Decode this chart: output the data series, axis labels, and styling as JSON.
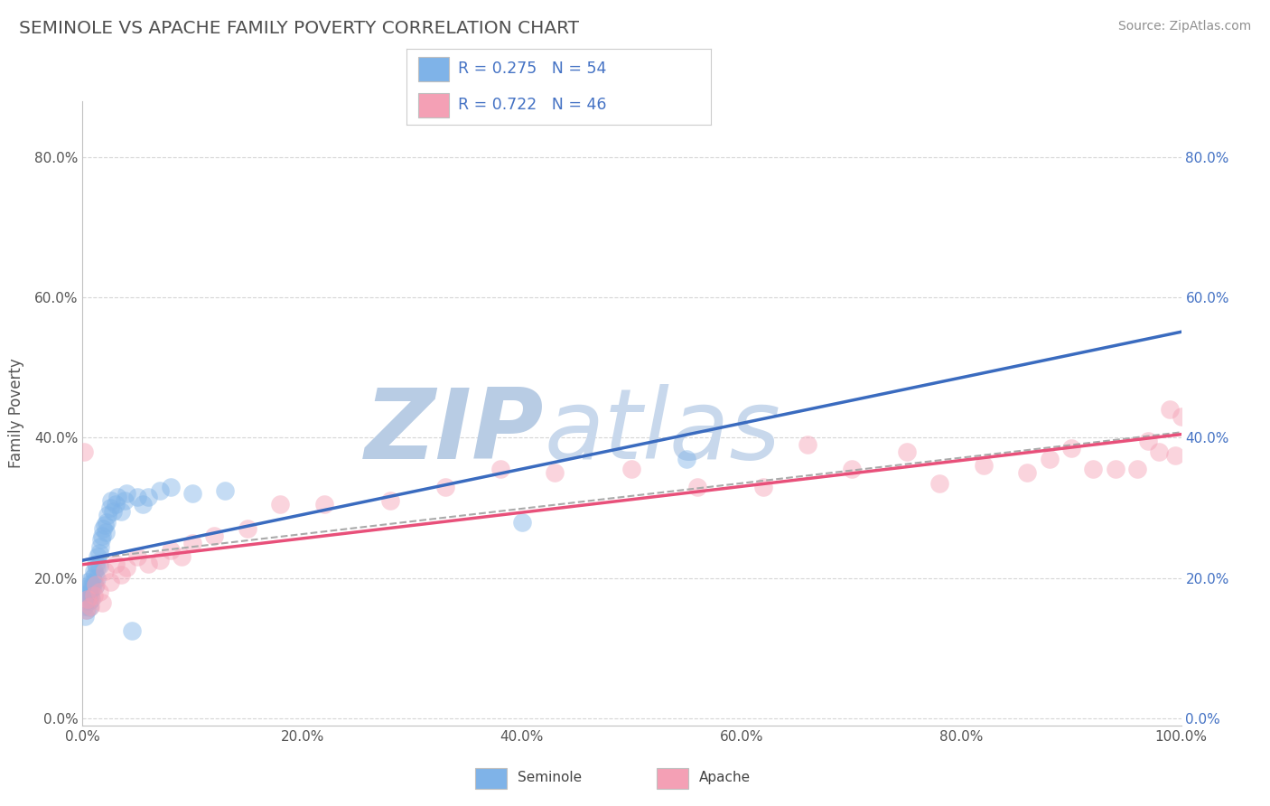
{
  "title": "SEMINOLE VS APACHE FAMILY POVERTY CORRELATION CHART",
  "source": "Source: ZipAtlas.com",
  "ylabel": "Family Poverty",
  "watermark_part1": "ZIP",
  "watermark_part2": "atlas",
  "R_seminole": 0.275,
  "N_seminole": 54,
  "R_apache": 0.722,
  "N_apache": 46,
  "seminole_color": "#7fb3e8",
  "apache_color": "#f4a0b5",
  "seminole_line_color": "#3a6bbf",
  "apache_line_color": "#e8507a",
  "xlim": [
    0,
    1.0
  ],
  "ylim": [
    -0.01,
    0.88
  ],
  "x_ticks": [
    0.0,
    0.2,
    0.4,
    0.6,
    0.8,
    1.0
  ],
  "x_tick_labels": [
    "0.0%",
    "20.0%",
    "40.0%",
    "60.0%",
    "80.0%",
    "100.0%"
  ],
  "y_ticks": [
    0.0,
    0.2,
    0.4,
    0.6,
    0.8
  ],
  "y_tick_labels": [
    "0.0%",
    "20.0%",
    "40.0%",
    "60.0%",
    "80.0%"
  ],
  "seminole_x": [
    0.001,
    0.001,
    0.002,
    0.002,
    0.003,
    0.004,
    0.004,
    0.005,
    0.005,
    0.006,
    0.006,
    0.006,
    0.007,
    0.007,
    0.008,
    0.008,
    0.009,
    0.009,
    0.01,
    0.01,
    0.011,
    0.011,
    0.012,
    0.013,
    0.013,
    0.014,
    0.015,
    0.015,
    0.016,
    0.017,
    0.018,
    0.019,
    0.02,
    0.021,
    0.022,
    0.023,
    0.025,
    0.026,
    0.028,
    0.03,
    0.032,
    0.035,
    0.038,
    0.04,
    0.045,
    0.05,
    0.055,
    0.06,
    0.07,
    0.08,
    0.1,
    0.13,
    0.4,
    0.55
  ],
  "seminole_y": [
    0.175,
    0.16,
    0.175,
    0.145,
    0.168,
    0.185,
    0.155,
    0.195,
    0.172,
    0.18,
    0.168,
    0.158,
    0.192,
    0.175,
    0.188,
    0.17,
    0.2,
    0.185,
    0.21,
    0.195,
    0.205,
    0.188,
    0.22,
    0.215,
    0.2,
    0.23,
    0.235,
    0.218,
    0.245,
    0.255,
    0.26,
    0.27,
    0.275,
    0.265,
    0.28,
    0.29,
    0.3,
    0.31,
    0.295,
    0.305,
    0.315,
    0.295,
    0.31,
    0.32,
    0.125,
    0.315,
    0.305,
    0.315,
    0.325,
    0.33,
    0.32,
    0.325,
    0.28,
    0.37
  ],
  "apache_x": [
    0.001,
    0.003,
    0.005,
    0.007,
    0.01,
    0.012,
    0.015,
    0.018,
    0.02,
    0.025,
    0.03,
    0.035,
    0.04,
    0.05,
    0.06,
    0.07,
    0.08,
    0.09,
    0.1,
    0.12,
    0.15,
    0.18,
    0.22,
    0.28,
    0.33,
    0.38,
    0.43,
    0.5,
    0.56,
    0.62,
    0.66,
    0.7,
    0.75,
    0.78,
    0.82,
    0.86,
    0.88,
    0.9,
    0.92,
    0.94,
    0.96,
    0.97,
    0.98,
    0.99,
    0.995,
    1.0
  ],
  "apache_y": [
    0.38,
    0.155,
    0.17,
    0.16,
    0.175,
    0.19,
    0.18,
    0.165,
    0.21,
    0.195,
    0.22,
    0.205,
    0.215,
    0.23,
    0.22,
    0.225,
    0.24,
    0.23,
    0.25,
    0.26,
    0.27,
    0.305,
    0.305,
    0.31,
    0.33,
    0.355,
    0.35,
    0.355,
    0.33,
    0.33,
    0.39,
    0.355,
    0.38,
    0.335,
    0.36,
    0.35,
    0.37,
    0.385,
    0.355,
    0.355,
    0.355,
    0.395,
    0.38,
    0.44,
    0.375,
    0.43
  ],
  "background_color": "#ffffff",
  "grid_color": "#cccccc",
  "title_color": "#505050",
  "source_color": "#909090",
  "watermark_color1": "#b8cce4",
  "watermark_color2": "#c8d8ec",
  "legend_color": "#4472c4"
}
